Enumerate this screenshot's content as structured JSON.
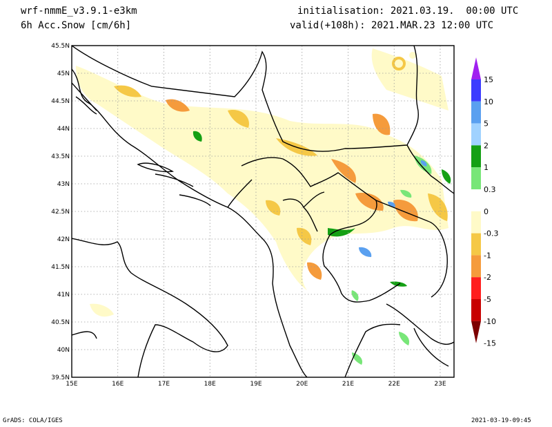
{
  "header": {
    "model": "wrf-nmmE_v3.9.1-e3km",
    "variable": "6h Acc.Snow [cm/6h]",
    "init": "initialisation: 2021.03.19.  00:00 UTC",
    "valid": "valid(+108h): 2021.MAR.23 12:00 UTC"
  },
  "footer": {
    "left": "GrADS: COLA/IGES",
    "right": "2021-03-19-09:45"
  },
  "map": {
    "lat_labels": [
      "45.5N",
      "45N",
      "44.5N",
      "44N",
      "43.5N",
      "43N",
      "42.5N",
      "42N",
      "41.5N",
      "41N",
      "40.5N",
      "40N",
      "39.5N"
    ],
    "lon_labels": [
      "15E",
      "16E",
      "17E",
      "18E",
      "19E",
      "20E",
      "21E",
      "22E",
      "23E"
    ],
    "lat_range": [
      39.5,
      45.5
    ],
    "lon_range": [
      15,
      23.3
    ]
  },
  "colorbar": {
    "labels": [
      "15",
      "10",
      "5",
      "2",
      "1",
      "0.3",
      "0",
      "-0.3",
      "-1",
      "-2",
      "-5",
      "-10",
      "-15"
    ],
    "colors": [
      "#a020f0",
      "#3c3cff",
      "#5aa0f0",
      "#a0d2ff",
      "#14a014",
      "#78e678",
      "#ffffff",
      "#fffac8",
      "#f5c846",
      "#f59b3c",
      "#ff1e1e",
      "#c80000",
      "#7d0000"
    ]
  }
}
